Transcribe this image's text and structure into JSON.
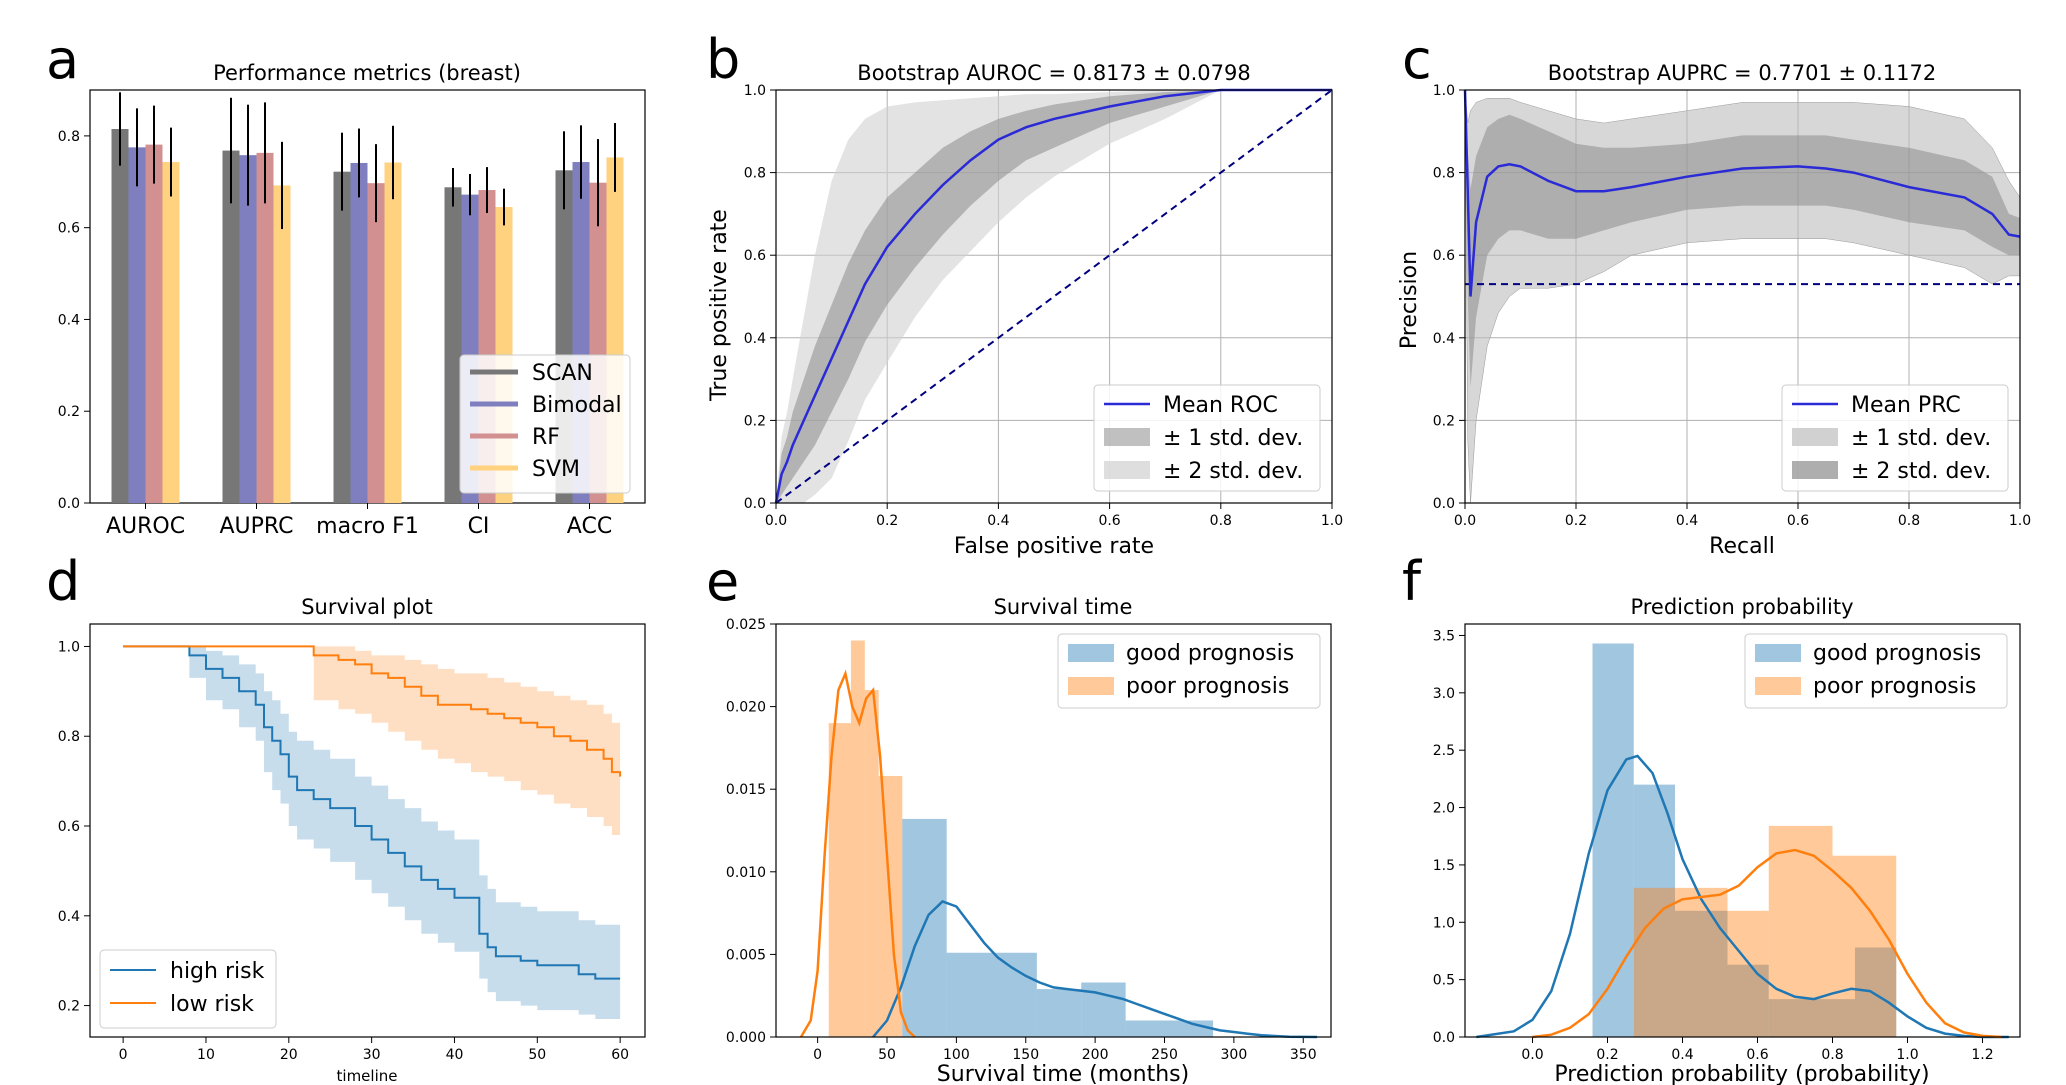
{
  "chart_data": [
    {
      "panel": "a",
      "type": "bar",
      "title": "Performance metrics (breast)",
      "xlabel": "",
      "ylabel": "",
      "categories": [
        "AUROC",
        "AUPRC",
        "macro F1",
        "CI",
        "ACC"
      ],
      "ylim": [
        0,
        0.9
      ],
      "yticks": [
        "0.0",
        "0.2",
        "0.4",
        "0.6",
        "0.8"
      ],
      "legend_position": "lower-right",
      "series": [
        {
          "name": "SCAN",
          "color": "#777777",
          "values": [
            0.815,
            0.768,
            0.722,
            0.688,
            0.725
          ],
          "err": [
            0.08,
            0.115,
            0.085,
            0.042,
            0.085
          ]
        },
        {
          "name": "Bimodal",
          "color": "#7f7fbf",
          "values": [
            0.775,
            0.758,
            0.741,
            0.672,
            0.743
          ],
          "err": [
            0.085,
            0.11,
            0.075,
            0.045,
            0.08
          ]
        },
        {
          "name": "RF",
          "color": "#d29090",
          "values": [
            0.781,
            0.763,
            0.697,
            0.682,
            0.698
          ],
          "err": [
            0.085,
            0.11,
            0.085,
            0.05,
            0.095
          ]
        },
        {
          "name": "SVM",
          "color": "#ffd27f",
          "values": [
            0.743,
            0.692,
            0.742,
            0.645,
            0.753
          ],
          "err": [
            0.075,
            0.095,
            0.08,
            0.04,
            0.075
          ]
        }
      ]
    },
    {
      "panel": "b",
      "type": "line",
      "title": "Bootstrap AUROC = 0.8173 ± 0.0798",
      "xlabel": "False positive rate",
      "ylabel": "True positive rate",
      "xlim": [
        0,
        1
      ],
      "ylim": [
        0,
        1
      ],
      "xticks": [
        "0.0",
        "0.2",
        "0.4",
        "0.6",
        "0.8",
        "1.0"
      ],
      "yticks": [
        "0.0",
        "0.2",
        "0.4",
        "0.6",
        "0.8",
        "1.0"
      ],
      "grid": true,
      "legend_position": "lower-right",
      "legend": [
        "Mean ROC",
        "± 1 std. dev.",
        "± 2 std. dev."
      ],
      "x": [
        0,
        0.01,
        0.02,
        0.03,
        0.05,
        0.07,
        0.1,
        0.13,
        0.16,
        0.2,
        0.25,
        0.3,
        0.35,
        0.4,
        0.45,
        0.5,
        0.6,
        0.7,
        0.8,
        0.9,
        1.0
      ],
      "mean": [
        0,
        0.07,
        0.1,
        0.14,
        0.2,
        0.26,
        0.35,
        0.44,
        0.53,
        0.62,
        0.7,
        0.77,
        0.83,
        0.88,
        0.91,
        0.93,
        0.96,
        0.985,
        1.0,
        1.0,
        1.0
      ],
      "std1_low": [
        0,
        0.02,
        0.04,
        0.06,
        0.1,
        0.14,
        0.22,
        0.3,
        0.39,
        0.48,
        0.57,
        0.65,
        0.72,
        0.78,
        0.83,
        0.86,
        0.92,
        0.96,
        1.0,
        1.0,
        1.0
      ],
      "std1_high": [
        0,
        0.12,
        0.16,
        0.22,
        0.3,
        0.38,
        0.48,
        0.58,
        0.66,
        0.74,
        0.8,
        0.86,
        0.9,
        0.93,
        0.95,
        0.965,
        0.985,
        0.995,
        1.0,
        1.0,
        1.0
      ],
      "std2_low": [
        0,
        0.0,
        0.0,
        0.0,
        0.0,
        0.02,
        0.06,
        0.15,
        0.25,
        0.34,
        0.45,
        0.54,
        0.61,
        0.68,
        0.74,
        0.79,
        0.87,
        0.93,
        1.0,
        1.0,
        1.0
      ],
      "std2_high": [
        0,
        0.16,
        0.22,
        0.3,
        0.45,
        0.6,
        0.78,
        0.88,
        0.93,
        0.96,
        0.97,
        0.975,
        0.98,
        0.985,
        0.99,
        0.99,
        0.995,
        1.0,
        1.0,
        1.0,
        1.0
      ],
      "chance_line": [
        [
          0,
          0
        ],
        [
          1,
          1
        ]
      ]
    },
    {
      "panel": "c",
      "type": "line",
      "title": "Bootstrap AUPRC = 0.7701 ± 0.1172",
      "xlabel": "Recall",
      "ylabel": "Precision",
      "xlim": [
        0,
        1
      ],
      "ylim": [
        0,
        1
      ],
      "xticks": [
        "0.0",
        "0.2",
        "0.4",
        "0.6",
        "0.8",
        "1.0"
      ],
      "yticks": [
        "0.0",
        "0.2",
        "0.4",
        "0.6",
        "0.8",
        "1.0"
      ],
      "grid": true,
      "legend_position": "lower-right",
      "legend": [
        "Mean PRC",
        "± 1 std. dev.",
        "± 2 std. dev."
      ],
      "x": [
        0,
        0.005,
        0.01,
        0.02,
        0.04,
        0.06,
        0.08,
        0.1,
        0.15,
        0.2,
        0.25,
        0.3,
        0.4,
        0.5,
        0.6,
        0.65,
        0.7,
        0.8,
        0.9,
        0.95,
        0.98,
        1.0
      ],
      "mean": [
        1.0,
        0.75,
        0.5,
        0.68,
        0.79,
        0.815,
        0.82,
        0.815,
        0.78,
        0.755,
        0.755,
        0.765,
        0.79,
        0.81,
        0.815,
        0.81,
        0.8,
        0.765,
        0.74,
        0.7,
        0.65,
        0.645
      ],
      "std1_low": [
        1.0,
        0.5,
        0.28,
        0.45,
        0.6,
        0.64,
        0.66,
        0.66,
        0.64,
        0.64,
        0.66,
        0.68,
        0.71,
        0.72,
        0.72,
        0.72,
        0.71,
        0.68,
        0.66,
        0.62,
        0.6,
        0.6
      ],
      "std1_high": [
        1.0,
        0.85,
        0.76,
        0.84,
        0.91,
        0.93,
        0.94,
        0.93,
        0.9,
        0.87,
        0.86,
        0.86,
        0.87,
        0.89,
        0.89,
        0.89,
        0.88,
        0.86,
        0.83,
        0.79,
        0.7,
        0.69
      ],
      "std2_low": [
        1.0,
        0.15,
        0.0,
        0.2,
        0.38,
        0.46,
        0.5,
        0.52,
        0.52,
        0.53,
        0.56,
        0.6,
        0.63,
        0.64,
        0.64,
        0.64,
        0.63,
        0.6,
        0.57,
        0.53,
        0.55,
        0.55
      ],
      "std2_high": [
        1.0,
        0.92,
        0.95,
        0.97,
        0.98,
        0.98,
        0.98,
        0.97,
        0.95,
        0.93,
        0.92,
        0.93,
        0.95,
        0.97,
        0.97,
        0.97,
        0.97,
        0.96,
        0.93,
        0.86,
        0.78,
        0.74
      ],
      "baseline": 0.53
    },
    {
      "panel": "d",
      "type": "line",
      "title": "Survival plot",
      "xlabel": "timeline",
      "ylabel": "",
      "xlim": [
        -4,
        63
      ],
      "ylim": [
        0.13,
        1.05
      ],
      "xticks": [
        "0",
        "10",
        "20",
        "30",
        "40",
        "50",
        "60"
      ],
      "yticks": [
        "0.2",
        "0.4",
        "0.6",
        "0.8",
        "1.0"
      ],
      "legend_position": "lower-left",
      "series": [
        {
          "name": "high risk",
          "color": "#1f77b4",
          "t": [
            0,
            8,
            10,
            12,
            14,
            16,
            17,
            18,
            19,
            20,
            21,
            23,
            25,
            28,
            30,
            32,
            34,
            36,
            38,
            40,
            43,
            44,
            45,
            48,
            50,
            55,
            57,
            60
          ],
          "s": [
            1.0,
            0.98,
            0.95,
            0.93,
            0.9,
            0.87,
            0.82,
            0.79,
            0.76,
            0.71,
            0.68,
            0.66,
            0.64,
            0.6,
            0.57,
            0.54,
            0.51,
            0.48,
            0.46,
            0.44,
            0.36,
            0.33,
            0.31,
            0.3,
            0.29,
            0.27,
            0.26,
            0.26
          ],
          "ci_low": [
            1.0,
            0.93,
            0.88,
            0.86,
            0.82,
            0.79,
            0.72,
            0.68,
            0.65,
            0.6,
            0.57,
            0.55,
            0.52,
            0.48,
            0.45,
            0.42,
            0.39,
            0.36,
            0.34,
            0.32,
            0.26,
            0.23,
            0.21,
            0.2,
            0.19,
            0.18,
            0.17,
            0.17
          ],
          "ci_high": [
            1.0,
            1.0,
            0.99,
            0.98,
            0.96,
            0.94,
            0.9,
            0.88,
            0.85,
            0.81,
            0.79,
            0.77,
            0.75,
            0.71,
            0.69,
            0.66,
            0.64,
            0.61,
            0.59,
            0.57,
            0.49,
            0.46,
            0.43,
            0.42,
            0.41,
            0.39,
            0.38,
            0.37
          ]
        },
        {
          "name": "low risk",
          "color": "#ff7f0e",
          "t": [
            0,
            23,
            26,
            28,
            30,
            32,
            34,
            36,
            38,
            40,
            42,
            44,
            46,
            48,
            50,
            52,
            54,
            56,
            58,
            59,
            60
          ],
          "s": [
            1.0,
            0.98,
            0.97,
            0.96,
            0.94,
            0.93,
            0.91,
            0.89,
            0.87,
            0.87,
            0.86,
            0.85,
            0.84,
            0.83,
            0.82,
            0.8,
            0.79,
            0.77,
            0.75,
            0.72,
            0.71
          ],
          "ci_low": [
            1.0,
            0.88,
            0.86,
            0.85,
            0.83,
            0.81,
            0.79,
            0.77,
            0.75,
            0.74,
            0.72,
            0.71,
            0.7,
            0.68,
            0.67,
            0.65,
            0.64,
            0.62,
            0.6,
            0.58,
            0.57
          ],
          "ci_high": [
            1.0,
            1.0,
            1.0,
            0.99,
            0.98,
            0.98,
            0.97,
            0.96,
            0.95,
            0.94,
            0.94,
            0.93,
            0.92,
            0.91,
            0.9,
            0.89,
            0.88,
            0.87,
            0.85,
            0.83,
            0.81
          ]
        }
      ]
    },
    {
      "panel": "e",
      "type": "bar",
      "title": "Survival time",
      "xlabel": "Survival time (months)",
      "ylabel": "",
      "xlim": [
        -30,
        370
      ],
      "ylim": [
        0,
        0.025
      ],
      "xticks": [
        0,
        50,
        100,
        150,
        200,
        250,
        300,
        350
      ],
      "yticks": [
        "0.000",
        "0.005",
        "0.010",
        "0.015",
        "0.020",
        "0.025"
      ],
      "legend_position": "top-right",
      "series": [
        {
          "name": "good prognosis",
          "color": "#1f77b4",
          "bins": [
            [
              61,
              93
            ],
            [
              93,
              158
            ],
            [
              158,
              190
            ],
            [
              190,
              222
            ],
            [
              222,
              285
            ]
          ],
          "values": [
            0.0132,
            0.0051,
            0.0029,
            0.0033,
            0.001
          ],
          "kde_x": [
            40,
            50,
            60,
            70,
            80,
            90,
            100,
            110,
            120,
            130,
            140,
            150,
            160,
            170,
            180,
            190,
            200,
            210,
            220,
            230,
            240,
            250,
            260,
            270,
            280,
            290,
            300,
            310,
            320,
            340,
            360
          ],
          "kde_y": [
            0.0,
            0.001,
            0.003,
            0.0055,
            0.0074,
            0.0082,
            0.0079,
            0.0068,
            0.0057,
            0.0048,
            0.0042,
            0.0037,
            0.0033,
            0.003,
            0.0029,
            0.0028,
            0.0027,
            0.0025,
            0.0023,
            0.002,
            0.0017,
            0.0014,
            0.0011,
            0.0008,
            0.0006,
            0.0004,
            0.0003,
            0.0002,
            0.0001,
            2e-05,
            0.0
          ]
        },
        {
          "name": "poor prognosis",
          "color": "#ff7f0e",
          "bins": [
            [
              8,
              24
            ],
            [
              24,
              34
            ],
            [
              34,
              44
            ],
            [
              44,
              61
            ]
          ],
          "values": [
            0.019,
            0.024,
            0.021,
            0.0158
          ],
          "kde_x": [
            -12,
            -5,
            0,
            5,
            10,
            15,
            20,
            25,
            30,
            35,
            40,
            45,
            50,
            55,
            60,
            65,
            70
          ],
          "kde_y": [
            0.0,
            0.001,
            0.004,
            0.011,
            0.017,
            0.021,
            0.022,
            0.02,
            0.019,
            0.0205,
            0.021,
            0.017,
            0.011,
            0.005,
            0.0015,
            0.0004,
            0.0
          ]
        }
      ]
    },
    {
      "panel": "f",
      "type": "bar",
      "title": "Prediction probability",
      "xlabel": "Prediction probability (probability)",
      "ylabel": "",
      "xlim": [
        -0.18,
        1.3
      ],
      "ylim": [
        0,
        3.6
      ],
      "xticks": [
        "0.0",
        "0.2",
        "0.4",
        "0.6",
        "0.8",
        "1.0",
        "1.2"
      ],
      "yticks": [
        "0.0",
        "0.5",
        "1.0",
        "1.5",
        "2.0",
        "2.5",
        "3.0",
        "3.5"
      ],
      "legend_position": "top-right",
      "series": [
        {
          "name": "good prognosis",
          "color": "#1f77b4",
          "bins": [
            [
              0.16,
              0.27
            ],
            [
              0.27,
              0.38
            ],
            [
              0.38,
              0.52
            ],
            [
              0.52,
              0.63
            ],
            [
              0.63,
              0.86
            ],
            [
              0.86,
              0.97
            ]
          ],
          "values": [
            3.43,
            2.2,
            1.1,
            0.63,
            0.33,
            0.78
          ],
          "kde_x": [
            -0.15,
            -0.05,
            0.0,
            0.05,
            0.1,
            0.15,
            0.2,
            0.25,
            0.28,
            0.32,
            0.36,
            0.4,
            0.45,
            0.5,
            0.55,
            0.6,
            0.65,
            0.7,
            0.75,
            0.8,
            0.85,
            0.9,
            0.95,
            1.0,
            1.05,
            1.1,
            1.15,
            1.2,
            1.27
          ],
          "kde_y": [
            0.0,
            0.05,
            0.15,
            0.4,
            0.9,
            1.6,
            2.15,
            2.42,
            2.45,
            2.3,
            1.95,
            1.55,
            1.2,
            0.95,
            0.75,
            0.55,
            0.42,
            0.35,
            0.33,
            0.38,
            0.42,
            0.4,
            0.3,
            0.18,
            0.08,
            0.03,
            0.01,
            0.0,
            0.0
          ]
        },
        {
          "name": "poor prognosis",
          "color": "#ff7f0e",
          "bins": [
            [
              0.27,
              0.52
            ],
            [
              0.52,
              0.63
            ],
            [
              0.63,
              0.8
            ],
            [
              0.8,
              0.97
            ]
          ],
          "values": [
            1.3,
            1.1,
            1.84,
            1.58
          ],
          "kde_x": [
            0.0,
            0.05,
            0.1,
            0.15,
            0.2,
            0.25,
            0.3,
            0.35,
            0.4,
            0.45,
            0.5,
            0.55,
            0.6,
            0.65,
            0.7,
            0.75,
            0.8,
            0.85,
            0.9,
            0.95,
            1.0,
            1.05,
            1.1,
            1.15,
            1.2,
            1.25
          ],
          "kde_y": [
            0.0,
            0.02,
            0.08,
            0.2,
            0.42,
            0.7,
            0.95,
            1.12,
            1.2,
            1.22,
            1.24,
            1.32,
            1.48,
            1.6,
            1.63,
            1.58,
            1.45,
            1.3,
            1.1,
            0.85,
            0.55,
            0.3,
            0.12,
            0.04,
            0.01,
            0.0
          ]
        }
      ]
    }
  ]
}
